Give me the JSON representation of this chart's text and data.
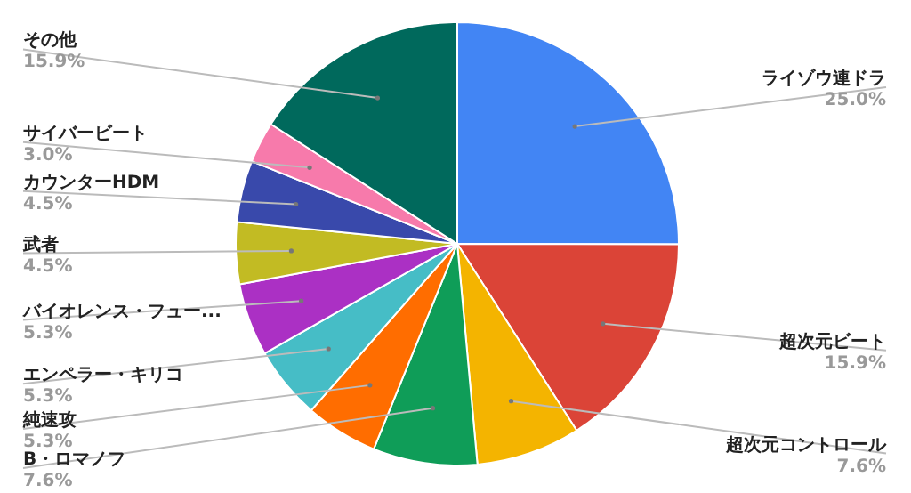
{
  "chart_data": {
    "type": "pie",
    "categories": [
      "ライゾウ連ドラ",
      "超次元ビート",
      "超次元コントロール",
      "B・ロマノフ",
      "純速攻",
      "エンペラー・キリコ",
      "バイオレンス・フュー...",
      "武者",
      "カウンターHDM",
      "サイバービート",
      "その他"
    ],
    "values": [
      25.0,
      15.9,
      7.6,
      7.6,
      5.3,
      5.3,
      5.3,
      4.5,
      4.5,
      3.0,
      15.9
    ],
    "value_labels": [
      "25.0%",
      "15.9%",
      "7.6%",
      "7.6%",
      "5.3%",
      "5.3%",
      "5.3%",
      "4.5%",
      "4.5%",
      "3.0%",
      "15.9%"
    ],
    "colors": [
      "#4285f4",
      "#db4437",
      "#f4b400",
      "#0f9d58",
      "#ff6d00",
      "#46bdc6",
      "#ab30c4",
      "#c2bb23",
      "#3949ab",
      "#f77aab",
      "#00695c"
    ],
    "legend": false
  }
}
